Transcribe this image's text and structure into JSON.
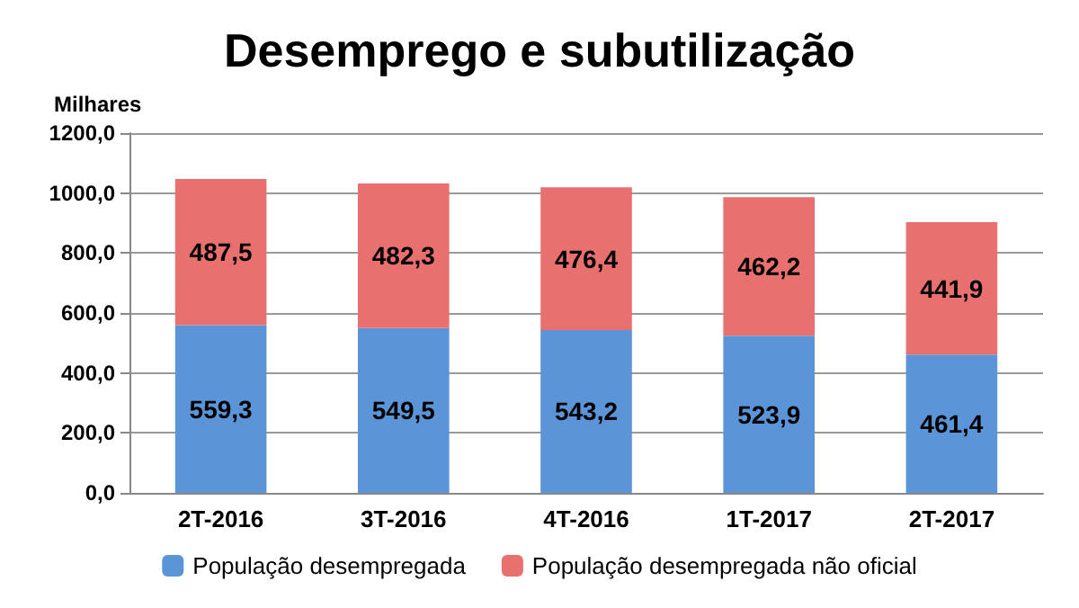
{
  "chart_data": {
    "type": "bar",
    "title": "Desemprego e subutilização",
    "ylabel": "Milhares",
    "stacked": true,
    "categories": [
      "2T-2016",
      "3T-2016",
      "4T-2016",
      "1T-2017",
      "2T-2017"
    ],
    "series": [
      {
        "name": "População desempregada",
        "color": "#5b95d8",
        "values": [
          559.3,
          549.5,
          543.2,
          523.9,
          461.4
        ],
        "value_labels": [
          "559,3",
          "549,5",
          "543,2",
          "523,9",
          "461,4"
        ]
      },
      {
        "name": "População desempregada não oficial",
        "color": "#e8706e",
        "values": [
          487.5,
          482.3,
          476.4,
          462.2,
          441.9
        ],
        "value_labels": [
          "487,5",
          "482,3",
          "476,4",
          "462,2",
          "441,9"
        ]
      }
    ],
    "ylim": [
      0,
      1200
    ],
    "yticks": [
      {
        "value": 0,
        "label": "0,0"
      },
      {
        "value": 200,
        "label": "200,0"
      },
      {
        "value": 400,
        "label": "400,0"
      },
      {
        "value": 600,
        "label": "600,0"
      },
      {
        "value": 800,
        "label": "800,0"
      },
      {
        "value": 1000,
        "label": "1000,0"
      },
      {
        "value": 1200,
        "label": "1200,0"
      }
    ],
    "grid": "y",
    "legend": "bottom"
  }
}
